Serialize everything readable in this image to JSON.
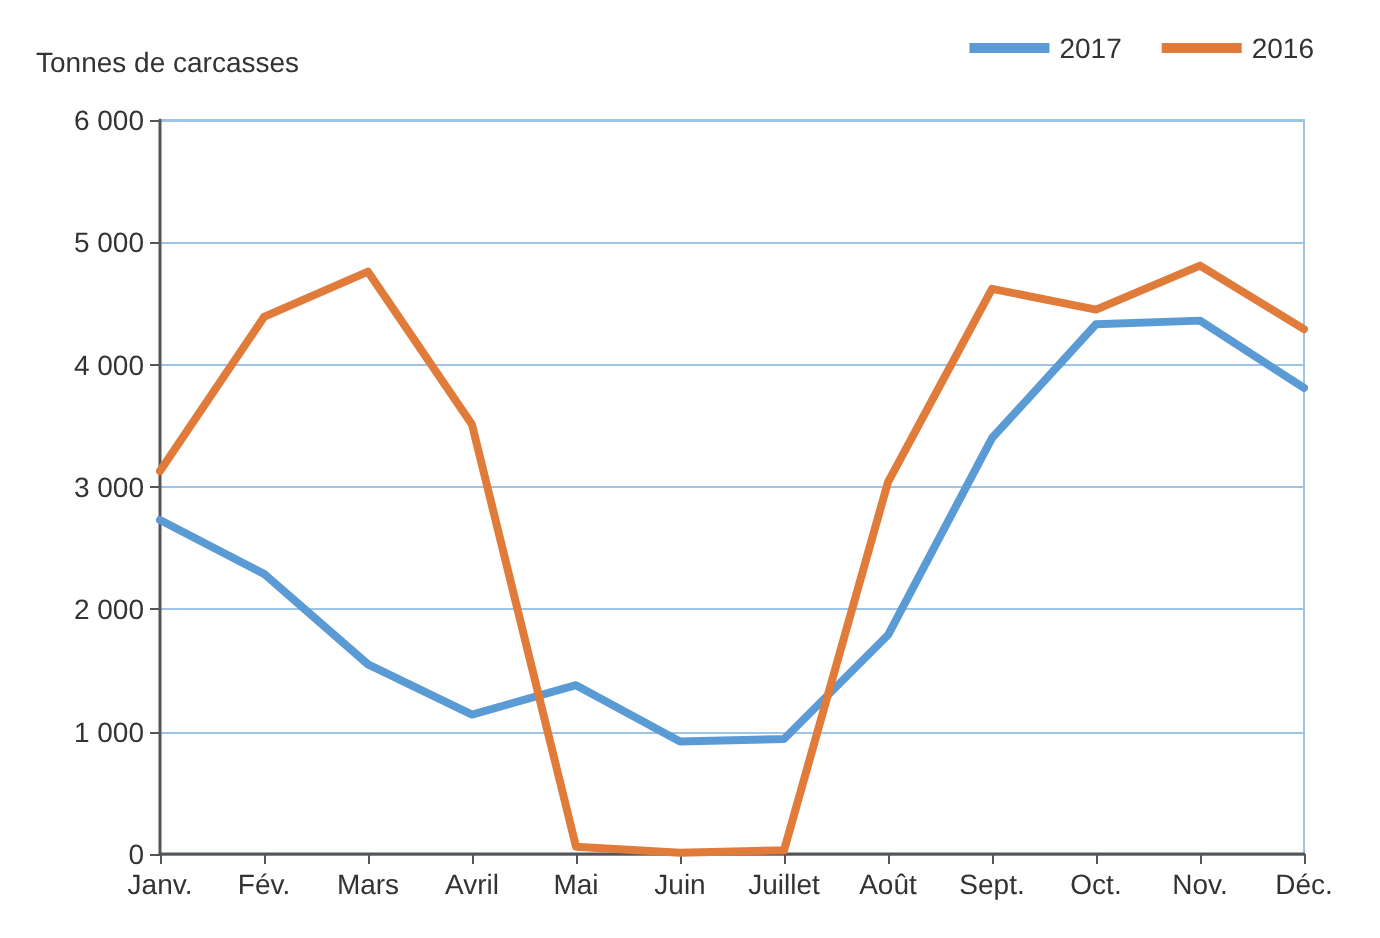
{
  "chart_data": {
    "type": "line",
    "ylabel": "Tonnes de carcasses",
    "categories": [
      "Janv.",
      "Fév.",
      "Mars",
      "Avril",
      "Mai",
      "Juin",
      "Juillet",
      "Août",
      "Sept.",
      "Oct.",
      "Nov.",
      "Déc."
    ],
    "series": [
      {
        "name": "2017",
        "color": "#5b9bd5",
        "values": [
          2730,
          2290,
          1550,
          1140,
          1380,
          920,
          940,
          1790,
          3400,
          4330,
          4360,
          3810
        ]
      },
      {
        "name": "2016",
        "color": "#e07b39",
        "values": [
          3130,
          4390,
          4760,
          3510,
          60,
          10,
          30,
          3040,
          4620,
          4450,
          4810,
          4290
        ]
      }
    ],
    "ylim": [
      0,
      6000
    ],
    "yticks": [
      {
        "value": 0,
        "label": "0"
      },
      {
        "value": 1000,
        "label": "1 000"
      },
      {
        "value": 2000,
        "label": "2 000"
      },
      {
        "value": 3000,
        "label": "3 000"
      },
      {
        "value": 4000,
        "label": "4 000"
      },
      {
        "value": 5000,
        "label": "5 000"
      },
      {
        "value": 6000,
        "label": "6 000"
      }
    ],
    "grid": "y",
    "legend": "top right",
    "marker": "none",
    "line_style": "solid"
  }
}
